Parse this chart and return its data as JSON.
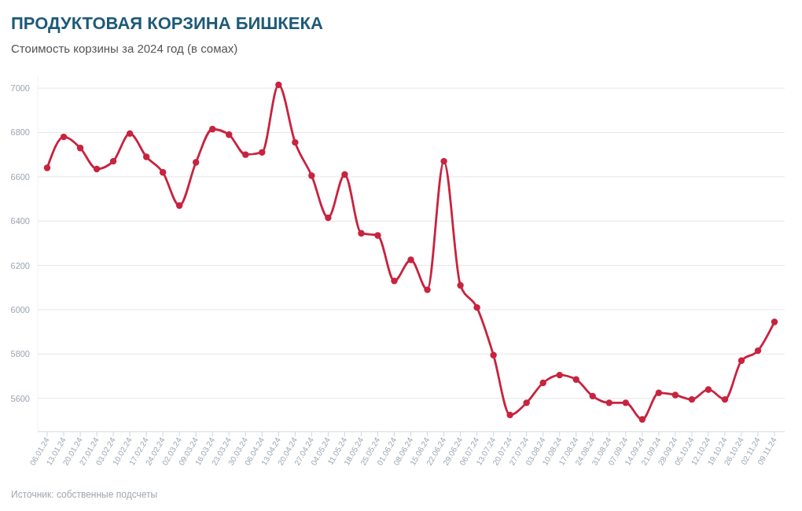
{
  "chart_data": {
    "type": "line",
    "title": "ПРОДУКТОВАЯ КОРЗИНА БИШКЕКА",
    "subtitle": "Стоимость корзины за 2024 год (в сомах)",
    "categories": [
      "06.01.24",
      "13.01.24",
      "20.01.24",
      "27.01.24",
      "03.02.24",
      "10.02.24",
      "17.02.24",
      "24.02.24",
      "02.03.24",
      "09.03.24",
      "16.03.24",
      "23.03.24",
      "30.03.24",
      "06.04.24",
      "13.04.24",
      "20.04.24",
      "27.04.24",
      "04.05.24",
      "11.05.24",
      "18.05.24",
      "25.05.24",
      "01.06.24",
      "08.06.24",
      "15.06.24",
      "22.06.24",
      "29.06.24",
      "06.07.24",
      "13.07.24",
      "20.07.24",
      "27.07.24",
      "03.08.24",
      "10.08.24",
      "17.08.24",
      "24.08.24",
      "31.08.24",
      "07.09.24",
      "14.09.24",
      "21.09.24",
      "28.09.24",
      "05.10.24",
      "12.10.24",
      "19.10.24",
      "26.10.24",
      "02.11.24",
      "09.11.24"
    ],
    "series": [
      {
        "color": "#c8233f",
        "values": [
          6640,
          6780,
          6730,
          6635,
          6670,
          6795,
          6690,
          6620,
          6470,
          6665,
          6815,
          6790,
          6700,
          6710,
          7015,
          6755,
          6605,
          6415,
          6610,
          6345,
          6335,
          6130,
          6225,
          6090,
          6670,
          6110,
          6010,
          5795,
          5525,
          5580,
          5670,
          5705,
          5685,
          5610,
          5580,
          5580,
          5505,
          5625,
          5615,
          5595,
          5640,
          5595,
          5770,
          5815,
          5945
        ]
      }
    ],
    "ylim": [
      5450,
      7050
    ],
    "yticks": [
      5600,
      5800,
      6000,
      6200,
      6400,
      6600,
      6800,
      7000
    ],
    "grid": "y",
    "marker": "circle",
    "line_style": "solid",
    "annotations": [
      "Источник: собственные подсчеты"
    ]
  }
}
